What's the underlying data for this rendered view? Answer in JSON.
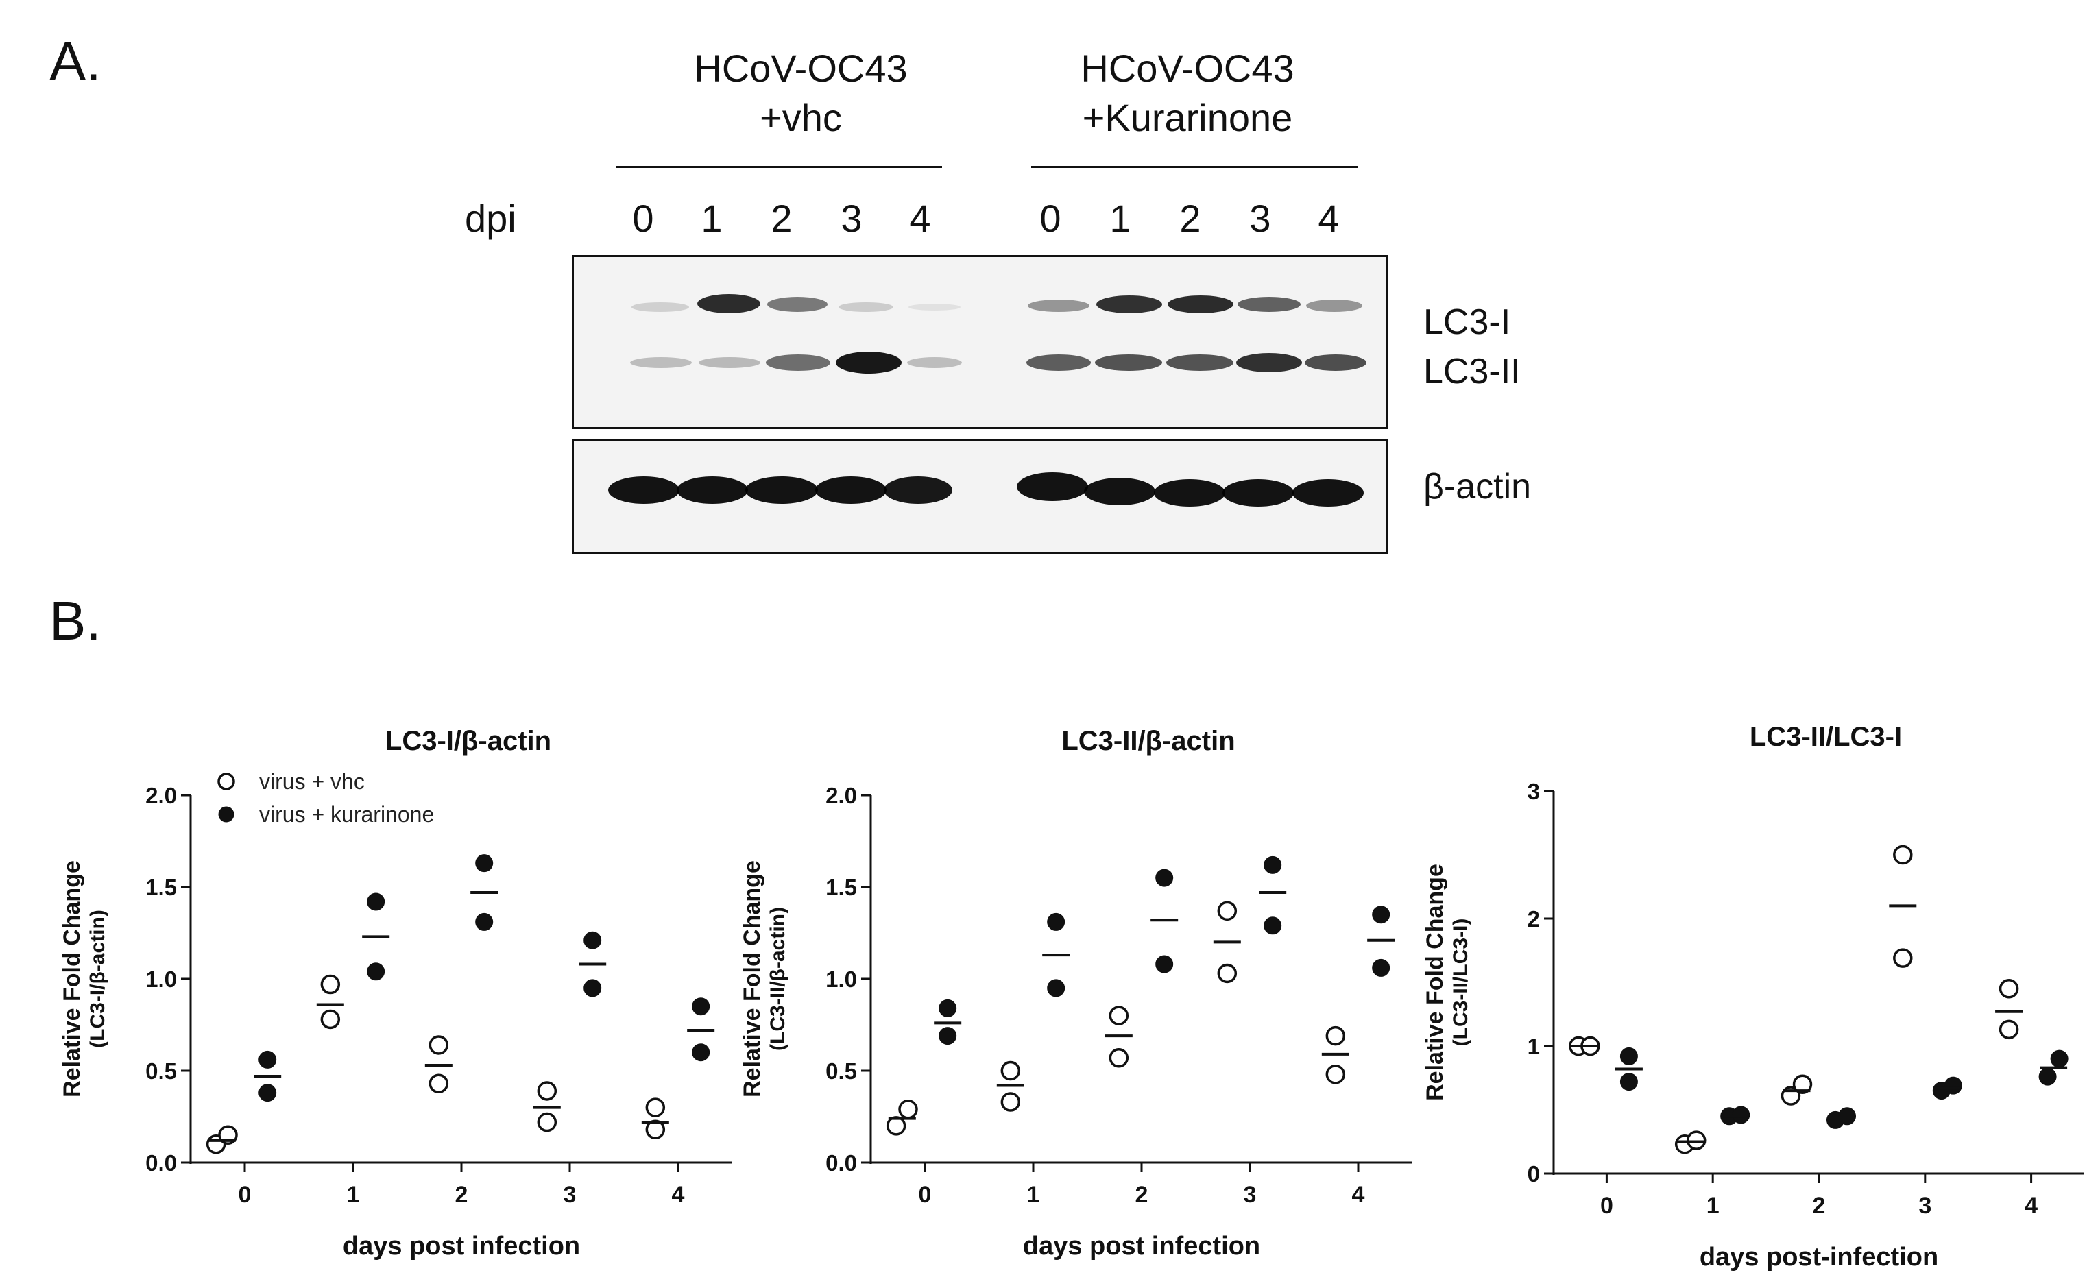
{
  "panel_a": {
    "letter": "A.",
    "groups": [
      {
        "line1": "HCoV-OC43",
        "line2": "+vhc"
      },
      {
        "line1": "HCoV-OC43",
        "line2": "+Kurarinone"
      }
    ],
    "dpi_label": "dpi",
    "lanes": [
      "0",
      "1",
      "2",
      "3",
      "4",
      "0",
      "1",
      "2",
      "3",
      "4"
    ],
    "band_labels": {
      "lc3_i": "LC3-I",
      "lc3_ii": "LC3-II",
      "actin": "β-actin"
    }
  },
  "panel_b": {
    "letter": "B."
  },
  "chart_data": [
    {
      "type": "scatter",
      "title": "LC3-I/β-actin",
      "ylabel_line1": "Relative Fold Change",
      "ylabel_line2": "(LC3-I/β-actin)",
      "xlabel": "days post infection",
      "categories": [
        "0",
        "1",
        "2",
        "3",
        "4"
      ],
      "ylim": [
        0,
        2.0
      ],
      "yticks": [
        "0.0",
        "0.5",
        "1.0",
        "1.5",
        "2.0"
      ],
      "legend": {
        "placement": "top-left"
      },
      "series": [
        {
          "name": "virus + vhc",
          "marker": "open",
          "points": [
            [
              0.1,
              0.15
            ],
            [
              0.78,
              0.97
            ],
            [
              0.43,
              0.64
            ],
            [
              0.22,
              0.39
            ],
            [
              0.18,
              0.3
            ]
          ],
          "means": [
            0.12,
            0.86,
            0.53,
            0.3,
            0.22
          ]
        },
        {
          "name": "virus + kurarinone",
          "marker": "filled",
          "points": [
            [
              0.38,
              0.56
            ],
            [
              1.04,
              1.42
            ],
            [
              1.31,
              1.63
            ],
            [
              0.95,
              1.21
            ],
            [
              0.6,
              0.85
            ]
          ],
          "means": [
            0.47,
            1.23,
            1.47,
            1.08,
            0.72
          ]
        }
      ]
    },
    {
      "type": "scatter",
      "title": "LC3-II/β-actin",
      "ylabel_line1": "Relative Fold Change",
      "ylabel_line2": "(LC3-II/β-actin)",
      "xlabel": "days post infection",
      "categories": [
        "0",
        "1",
        "2",
        "3",
        "4"
      ],
      "ylim": [
        0,
        2.0
      ],
      "yticks": [
        "0.0",
        "0.5",
        "1.0",
        "1.5",
        "2.0"
      ],
      "series": [
        {
          "name": "virus + vhc",
          "marker": "open",
          "points": [
            [
              0.2,
              0.29
            ],
            [
              0.33,
              0.5
            ],
            [
              0.57,
              0.8
            ],
            [
              1.03,
              1.37
            ],
            [
              0.48,
              0.69
            ]
          ],
          "means": [
            0.24,
            0.42,
            0.69,
            1.2,
            0.59
          ]
        },
        {
          "name": "virus + kurarinone",
          "marker": "filled",
          "points": [
            [
              0.69,
              0.84
            ],
            [
              0.95,
              1.31
            ],
            [
              1.08,
              1.55
            ],
            [
              1.29,
              1.62
            ],
            [
              1.06,
              1.35
            ]
          ],
          "means": [
            0.76,
            1.13,
            1.32,
            1.47,
            1.21
          ]
        }
      ]
    },
    {
      "type": "scatter",
      "title": "LC3-II/LC3-I",
      "ylabel_line1": "Relative Fold Change",
      "ylabel_line2": "(LC3-II/LC3-I)",
      "xlabel": "days post-infection",
      "categories": [
        "0",
        "1",
        "2",
        "3",
        "4"
      ],
      "ylim": [
        0,
        3
      ],
      "yticks": [
        "0",
        "1",
        "2",
        "3"
      ],
      "series": [
        {
          "name": "virus + vhc",
          "marker": "open",
          "points": [
            [
              1.0,
              1.0
            ],
            [
              0.23,
              0.26
            ],
            [
              0.61,
              0.7
            ],
            [
              1.69,
              2.5
            ],
            [
              1.13,
              1.45
            ]
          ],
          "means": [
            1.0,
            0.25,
            0.65,
            2.1,
            1.27
          ]
        },
        {
          "name": "virus + kurarinone",
          "marker": "filled",
          "points": [
            [
              0.72,
              0.92
            ],
            [
              0.45,
              0.46
            ],
            [
              0.42,
              0.45
            ],
            [
              0.65,
              0.69
            ],
            [
              0.76,
              0.9
            ]
          ],
          "means": [
            0.82,
            0.45,
            0.43,
            0.67,
            0.83
          ]
        }
      ]
    }
  ]
}
